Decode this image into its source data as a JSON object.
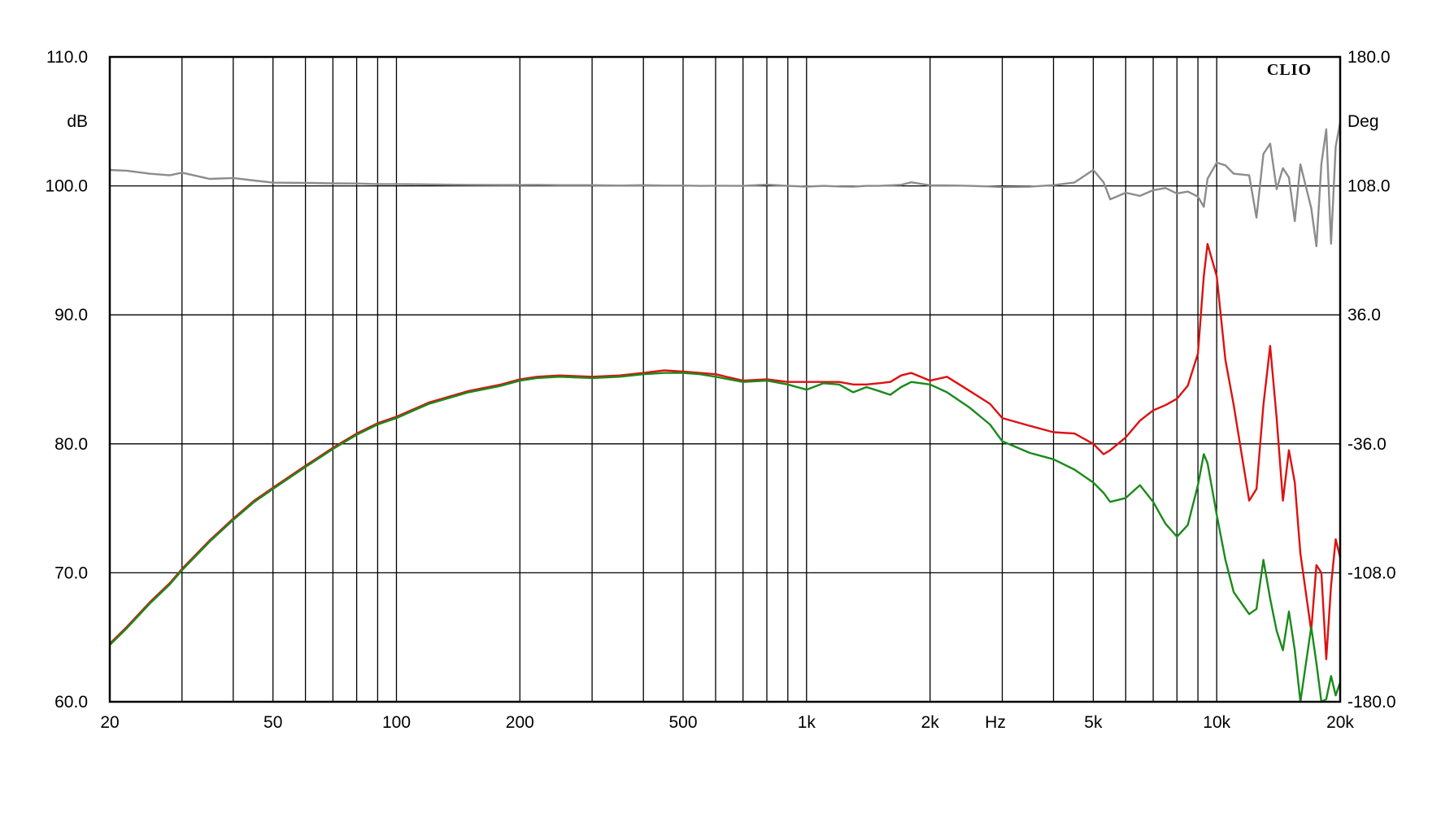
{
  "chart_data": {
    "type": "line",
    "brand": "CLIO",
    "xscale": "log",
    "xlim": [
      20,
      20000
    ],
    "ylim": [
      60,
      110
    ],
    "y2lim": [
      -180,
      180
    ],
    "grid": true,
    "xlabel": "Hz",
    "ylabel": "dB",
    "y2label": "Deg",
    "x_tick_labels": [
      {
        "value": 20,
        "label": "20"
      },
      {
        "value": 50,
        "label": "50"
      },
      {
        "value": 100,
        "label": "100"
      },
      {
        "value": 200,
        "label": "200"
      },
      {
        "value": 500,
        "label": "500"
      },
      {
        "value": 1000,
        "label": "1k"
      },
      {
        "value": 2000,
        "label": "2k"
      },
      {
        "value": 5000,
        "label": "5k"
      },
      {
        "value": 10000,
        "label": "10k"
      },
      {
        "value": 20000,
        "label": "20k"
      }
    ],
    "y_tick_labels": [
      "60.0",
      "70.0",
      "80.0",
      "90.0",
      "100.0",
      "110.0"
    ],
    "y2_tick_labels": [
      "-180.0",
      "-108.0",
      "-36.0",
      "36.0",
      "108.0",
      "180.0"
    ],
    "colors": {
      "red": "#dd1111",
      "green": "#1a8a1a",
      "gray": "#8c8c8c"
    },
    "series": [
      {
        "color": "red",
        "axis": "left",
        "x": [
          20,
          22,
          25,
          28,
          30,
          35,
          40,
          45,
          50,
          60,
          70,
          80,
          90,
          100,
          120,
          150,
          180,
          200,
          220,
          250,
          300,
          350,
          400,
          450,
          500,
          550,
          600,
          700,
          800,
          900,
          1000,
          1100,
          1200,
          1300,
          1400,
          1500,
          1600,
          1700,
          1800,
          2000,
          2200,
          2500,
          2800,
          3000,
          3500,
          4000,
          4500,
          5000,
          5300,
          5500,
          6000,
          6500,
          7000,
          7500,
          8000,
          8500,
          9000,
          9300,
          9500,
          10000,
          10500,
          11000,
          12000,
          12500,
          13000,
          13500,
          14000,
          14500,
          15000,
          15500,
          16000,
          17000,
          17500,
          18000,
          18500,
          19000,
          19500,
          20000
        ],
        "y": [
          64.5,
          65.8,
          67.7,
          69.2,
          70.3,
          72.5,
          74.2,
          75.6,
          76.6,
          78.3,
          79.7,
          80.8,
          81.6,
          82.1,
          83.2,
          84.1,
          84.6,
          85.0,
          85.2,
          85.3,
          85.2,
          85.3,
          85.5,
          85.7,
          85.6,
          85.5,
          85.4,
          84.9,
          85.0,
          84.8,
          84.8,
          84.8,
          84.8,
          84.6,
          84.6,
          84.7,
          84.8,
          85.3,
          85.5,
          84.9,
          85.2,
          84.1,
          83.1,
          82.0,
          81.4,
          80.9,
          80.8,
          80.0,
          79.2,
          79.5,
          80.5,
          81.8,
          82.6,
          83.0,
          83.5,
          84.5,
          87.0,
          93.0,
          95.5,
          93.0,
          86.5,
          83.0,
          75.6,
          76.5,
          83.0,
          87.6,
          82.0,
          75.6,
          79.5,
          77.0,
          71.5,
          65.5,
          70.6,
          70.0,
          63.3,
          69.0,
          72.6,
          71.2
        ]
      },
      {
        "color": "green",
        "axis": "left",
        "x": [
          20,
          22,
          25,
          28,
          30,
          35,
          40,
          45,
          50,
          60,
          70,
          80,
          90,
          100,
          120,
          150,
          180,
          200,
          220,
          250,
          300,
          350,
          400,
          450,
          500,
          550,
          600,
          700,
          800,
          900,
          1000,
          1100,
          1200,
          1300,
          1400,
          1500,
          1600,
          1700,
          1800,
          2000,
          2200,
          2500,
          2800,
          3000,
          3500,
          4000,
          4500,
          5000,
          5300,
          5500,
          6000,
          6500,
          7000,
          7500,
          8000,
          8500,
          9000,
          9300,
          9500,
          10000,
          10500,
          11000,
          12000,
          12500,
          13000,
          13500,
          14000,
          14500,
          15000,
          15500,
          16000,
          17000,
          17500,
          18000,
          18500,
          19000,
          19500,
          20000
        ],
        "y": [
          64.4,
          65.7,
          67.6,
          69.1,
          70.2,
          72.4,
          74.1,
          75.5,
          76.5,
          78.2,
          79.6,
          80.7,
          81.5,
          82.0,
          83.1,
          84.0,
          84.5,
          84.9,
          85.1,
          85.2,
          85.1,
          85.2,
          85.4,
          85.5,
          85.5,
          85.4,
          85.2,
          84.8,
          84.9,
          84.6,
          84.2,
          84.7,
          84.6,
          84.0,
          84.4,
          84.1,
          83.8,
          84.4,
          84.8,
          84.6,
          84.0,
          82.8,
          81.5,
          80.2,
          79.3,
          78.8,
          78.0,
          77.0,
          76.2,
          75.5,
          75.8,
          76.8,
          75.5,
          73.8,
          72.8,
          73.7,
          76.8,
          79.2,
          78.5,
          74.5,
          71.0,
          68.5,
          66.8,
          67.2,
          71.0,
          68.0,
          65.5,
          64.0,
          67.0,
          64.0,
          60.0,
          65.8,
          63.0,
          60.0,
          60.2,
          62.0,
          60.5,
          61.5
        ]
      },
      {
        "color": "gray",
        "axis": "right",
        "x": [
          20,
          22,
          25,
          28,
          30,
          35,
          40,
          45,
          50,
          60,
          70,
          80,
          90,
          100,
          120,
          150,
          180,
          200,
          220,
          250,
          300,
          350,
          400,
          450,
          500,
          550,
          600,
          700,
          800,
          900,
          1000,
          1100,
          1200,
          1300,
          1400,
          1500,
          1600,
          1700,
          1800,
          2000,
          2200,
          2500,
          2800,
          3000,
          3500,
          4000,
          4500,
          5000,
          5300,
          5500,
          6000,
          6500,
          7000,
          7500,
          8000,
          8500,
          9000,
          9300,
          9500,
          10000,
          10500,
          11000,
          12000,
          12500,
          13000,
          13500,
          14000,
          14500,
          15000,
          15500,
          16000,
          17000,
          17500,
          18000,
          18500,
          19000,
          19500,
          20000
        ],
        "y": [
          116.9,
          116.5,
          114.8,
          113.9,
          115.4,
          111.9,
          112.4,
          111.0,
          109.8,
          109.7,
          109.4,
          109.3,
          109.0,
          109.0,
          108.8,
          108.6,
          108.5,
          108.5,
          108.6,
          108.4,
          108.4,
          108.2,
          108.4,
          108.2,
          108.2,
          108.0,
          108.1,
          108.0,
          108.7,
          108.0,
          107.6,
          108.0,
          107.7,
          107.6,
          108.0,
          108.0,
          108.3,
          108.6,
          110.0,
          108.3,
          108.3,
          108.0,
          107.7,
          107.3,
          107.6,
          108.4,
          109.9,
          116.9,
          110.0,
          100.5,
          104.2,
          102.4,
          105.6,
          106.8,
          103.8,
          104.8,
          102.0,
          96.3,
          112.0,
          121.0,
          119.5,
          114.8,
          113.9,
          90.3,
          125.8,
          131.6,
          106.2,
          117.9,
          112.7,
          88.3,
          120.0,
          95.7,
          74.3,
          120.2,
          139.6,
          75.7,
          130.0,
          143.3
        ]
      }
    ]
  }
}
